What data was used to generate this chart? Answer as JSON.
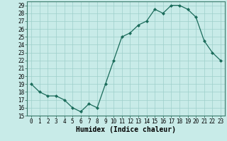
{
  "x": [
    0,
    1,
    2,
    3,
    4,
    5,
    6,
    7,
    8,
    9,
    10,
    11,
    12,
    13,
    14,
    15,
    16,
    17,
    18,
    19,
    20,
    21,
    22,
    23
  ],
  "y": [
    19,
    18,
    17.5,
    17.5,
    17,
    16,
    15.5,
    16.5,
    16,
    19,
    22,
    25,
    25.5,
    26.5,
    27,
    28.5,
    28,
    29,
    29,
    28.5,
    27.5,
    24.5,
    23,
    22
  ],
  "line_color": "#1a6b5a",
  "marker_color": "#1a6b5a",
  "bg_color": "#c8ebe8",
  "grid_color": "#9ecfca",
  "xlabel": "Humidex (Indice chaleur)",
  "ylim": [
    15,
    29.5
  ],
  "xlim": [
    -0.5,
    23.5
  ],
  "yticks": [
    15,
    16,
    17,
    18,
    19,
    20,
    21,
    22,
    23,
    24,
    25,
    26,
    27,
    28,
    29
  ],
  "xticks": [
    0,
    1,
    2,
    3,
    4,
    5,
    6,
    7,
    8,
    9,
    10,
    11,
    12,
    13,
    14,
    15,
    16,
    17,
    18,
    19,
    20,
    21,
    22,
    23
  ],
  "xlabel_fontsize": 7,
  "tick_fontsize": 5.5,
  "spine_color": "#3a7a6a",
  "tick_color": "#3a7a6a"
}
